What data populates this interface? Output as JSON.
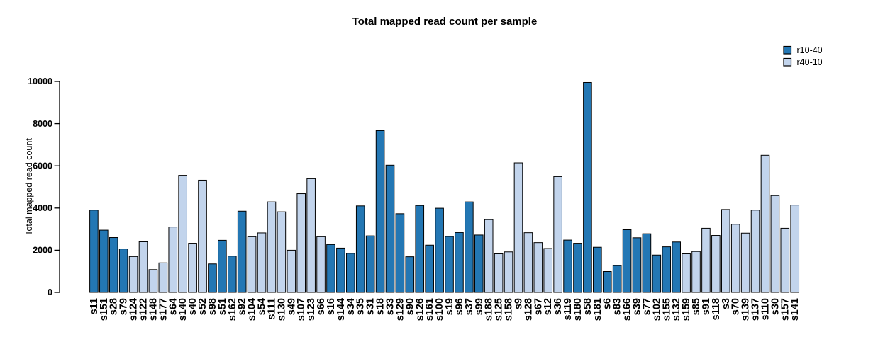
{
  "chart_data": {
    "type": "bar",
    "title": "Total mapped read count per sample",
    "xlabel": "",
    "ylabel": "Total mapped read count",
    "ylim": [
      0,
      10000
    ],
    "yticks": [
      0,
      2000,
      4000,
      6000,
      8000,
      10000
    ],
    "grid": false,
    "legend": {
      "position": "top-right",
      "entries": [
        {
          "label": "r10-40",
          "color": "#2377b4"
        },
        {
          "label": "r40-10",
          "color": "#c2d4ec"
        }
      ]
    },
    "series_colors": {
      "r10-40": "#2377b4",
      "r40-10": "#c2d4ec"
    },
    "bar_border_color": "#000000",
    "bars": [
      {
        "sample": "s11",
        "series": "r10-40",
        "value": 3900
      },
      {
        "sample": "s151",
        "series": "r10-40",
        "value": 2950
      },
      {
        "sample": "s28",
        "series": "r10-40",
        "value": 2600
      },
      {
        "sample": "s79",
        "series": "r10-40",
        "value": 2060
      },
      {
        "sample": "s124",
        "series": "r40-10",
        "value": 1700
      },
      {
        "sample": "s122",
        "series": "r40-10",
        "value": 2400
      },
      {
        "sample": "s148",
        "series": "r40-10",
        "value": 1080
      },
      {
        "sample": "s177",
        "series": "r40-10",
        "value": 1400
      },
      {
        "sample": "s64",
        "series": "r40-10",
        "value": 3100
      },
      {
        "sample": "s140",
        "series": "r40-10",
        "value": 5550
      },
      {
        "sample": "s40",
        "series": "r40-10",
        "value": 2330
      },
      {
        "sample": "s52",
        "series": "r40-10",
        "value": 5320
      },
      {
        "sample": "s98",
        "series": "r10-40",
        "value": 1350
      },
      {
        "sample": "s51",
        "series": "r10-40",
        "value": 2470
      },
      {
        "sample": "s162",
        "series": "r10-40",
        "value": 1720
      },
      {
        "sample": "s92",
        "series": "r10-40",
        "value": 3850
      },
      {
        "sample": "s104",
        "series": "r40-10",
        "value": 2640
      },
      {
        "sample": "s54",
        "series": "r40-10",
        "value": 2820
      },
      {
        "sample": "s111",
        "series": "r40-10",
        "value": 4290
      },
      {
        "sample": "s130",
        "series": "r40-10",
        "value": 3820
      },
      {
        "sample": "s49",
        "series": "r40-10",
        "value": 2000
      },
      {
        "sample": "s107",
        "series": "r40-10",
        "value": 4680
      },
      {
        "sample": "s123",
        "series": "r40-10",
        "value": 5390
      },
      {
        "sample": "s66",
        "series": "r40-10",
        "value": 2640
      },
      {
        "sample": "s16",
        "series": "r10-40",
        "value": 2270
      },
      {
        "sample": "s144",
        "series": "r10-40",
        "value": 2100
      },
      {
        "sample": "s34",
        "series": "r10-40",
        "value": 1850
      },
      {
        "sample": "s35",
        "series": "r10-40",
        "value": 4100
      },
      {
        "sample": "s31",
        "series": "r10-40",
        "value": 2680
      },
      {
        "sample": "s18",
        "series": "r10-40",
        "value": 7670
      },
      {
        "sample": "s33",
        "series": "r10-40",
        "value": 6030
      },
      {
        "sample": "s129",
        "series": "r10-40",
        "value": 3730
      },
      {
        "sample": "s90",
        "series": "r10-40",
        "value": 1690
      },
      {
        "sample": "s126",
        "series": "r10-40",
        "value": 4120
      },
      {
        "sample": "s161",
        "series": "r10-40",
        "value": 2240
      },
      {
        "sample": "s100",
        "series": "r10-40",
        "value": 3990
      },
      {
        "sample": "s19",
        "series": "r10-40",
        "value": 2650
      },
      {
        "sample": "s96",
        "series": "r10-40",
        "value": 2840
      },
      {
        "sample": "s37",
        "series": "r10-40",
        "value": 4290
      },
      {
        "sample": "s99",
        "series": "r10-40",
        "value": 2720
      },
      {
        "sample": "s188",
        "series": "r40-10",
        "value": 3450
      },
      {
        "sample": "s125",
        "series": "r40-10",
        "value": 1830
      },
      {
        "sample": "s158",
        "series": "r40-10",
        "value": 1920
      },
      {
        "sample": "s9",
        "series": "r40-10",
        "value": 6140
      },
      {
        "sample": "s128",
        "series": "r40-10",
        "value": 2830
      },
      {
        "sample": "s67",
        "series": "r40-10",
        "value": 2360
      },
      {
        "sample": "s12",
        "series": "r40-10",
        "value": 2080
      },
      {
        "sample": "s36",
        "series": "r40-10",
        "value": 5490
      },
      {
        "sample": "s119",
        "series": "r10-40",
        "value": 2480
      },
      {
        "sample": "s180",
        "series": "r10-40",
        "value": 2330
      },
      {
        "sample": "s58",
        "series": "r10-40",
        "value": 9950
      },
      {
        "sample": "s181",
        "series": "r10-40",
        "value": 2140
      },
      {
        "sample": "s6",
        "series": "r10-40",
        "value": 990
      },
      {
        "sample": "s83",
        "series": "r10-40",
        "value": 1270
      },
      {
        "sample": "s166",
        "series": "r10-40",
        "value": 2970
      },
      {
        "sample": "s39",
        "series": "r10-40",
        "value": 2590
      },
      {
        "sample": "s77",
        "series": "r10-40",
        "value": 2780
      },
      {
        "sample": "s102",
        "series": "r10-40",
        "value": 1770
      },
      {
        "sample": "s155",
        "series": "r10-40",
        "value": 2160
      },
      {
        "sample": "s132",
        "series": "r10-40",
        "value": 2390
      },
      {
        "sample": "s159",
        "series": "r40-10",
        "value": 1830
      },
      {
        "sample": "s85",
        "series": "r40-10",
        "value": 1940
      },
      {
        "sample": "s91",
        "series": "r40-10",
        "value": 3040
      },
      {
        "sample": "s118",
        "series": "r40-10",
        "value": 2700
      },
      {
        "sample": "s3",
        "series": "r40-10",
        "value": 3930
      },
      {
        "sample": "s70",
        "series": "r40-10",
        "value": 3230
      },
      {
        "sample": "s139",
        "series": "r40-10",
        "value": 2810
      },
      {
        "sample": "s137",
        "series": "r40-10",
        "value": 3900
      },
      {
        "sample": "s110",
        "series": "r40-10",
        "value": 6500
      },
      {
        "sample": "s30",
        "series": "r40-10",
        "value": 4590
      },
      {
        "sample": "s157",
        "series": "r40-10",
        "value": 3040
      },
      {
        "sample": "s141",
        "series": "r40-10",
        "value": 4140
      }
    ]
  }
}
